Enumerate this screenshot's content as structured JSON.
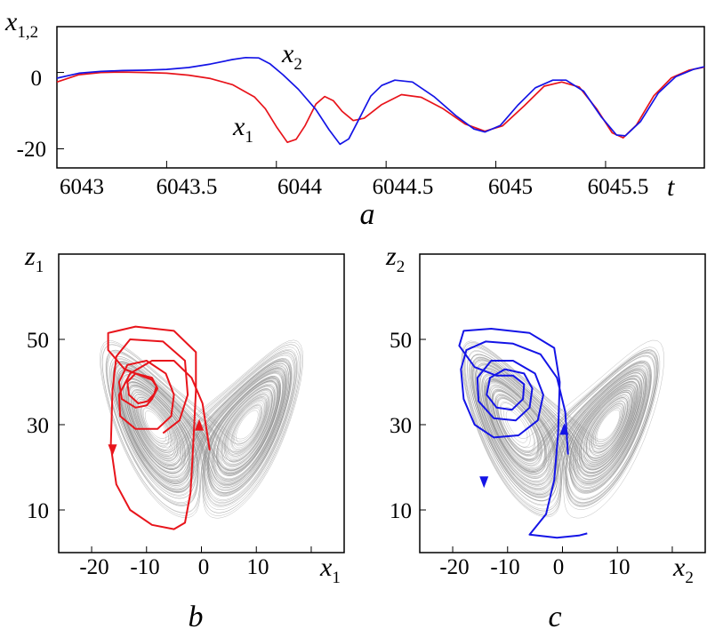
{
  "chart_data": [
    {
      "panel": "a",
      "type": "line",
      "panel_label": "a",
      "ylabel": "x",
      "ylabel_sub": "1,2",
      "xlabel": "t",
      "xlim": [
        6043,
        6045.95
      ],
      "ylim": [
        -25,
        12
      ],
      "x_ticks": [
        "6043",
        "6043.5",
        "6044",
        "6044.5",
        "6045",
        "6045.5"
      ],
      "y_ticks": [
        "0",
        "-20"
      ],
      "series": [
        {
          "name": "x",
          "name_sub": "1",
          "color": "#e8141b",
          "points": [
            [
              6043.0,
              -2.5
            ],
            [
              6043.1,
              -0.6
            ],
            [
              6043.2,
              0.0
            ],
            [
              6043.3,
              0.1
            ],
            [
              6043.4,
              0.0
            ],
            [
              6043.5,
              -0.2
            ],
            [
              6043.6,
              -0.7
            ],
            [
              6043.7,
              -1.6
            ],
            [
              6043.8,
              -3.2
            ],
            [
              6043.9,
              -6.4
            ],
            [
              6043.95,
              -9.5
            ],
            [
              6044.0,
              -14.2
            ],
            [
              6044.05,
              -18.3
            ],
            [
              6044.09,
              -17.5
            ],
            [
              6044.13,
              -14.0
            ],
            [
              6044.18,
              -8.3
            ],
            [
              6044.22,
              -6.3
            ],
            [
              6044.26,
              -7.4
            ],
            [
              6044.3,
              -10.2
            ],
            [
              6044.35,
              -12.6
            ],
            [
              6044.4,
              -12.0
            ],
            [
              6044.48,
              -8.4
            ],
            [
              6044.57,
              -5.8
            ],
            [
              6044.66,
              -6.5
            ],
            [
              6044.76,
              -9.5
            ],
            [
              6044.86,
              -13.5
            ],
            [
              6044.95,
              -15.4
            ],
            [
              6045.03,
              -14.0
            ],
            [
              6045.13,
              -8.7
            ],
            [
              6045.22,
              -3.6
            ],
            [
              6045.3,
              -2.5
            ],
            [
              6045.38,
              -3.8
            ],
            [
              6045.46,
              -9.6
            ],
            [
              6045.53,
              -15.8
            ],
            [
              6045.58,
              -17.1
            ],
            [
              6045.64,
              -13.8
            ],
            [
              6045.72,
              -6.1
            ],
            [
              6045.8,
              -1.4
            ],
            [
              6045.88,
              0.6
            ],
            [
              6045.95,
              1.4
            ]
          ]
        },
        {
          "name": "x",
          "name_sub": "2",
          "color": "#1414e6",
          "points": [
            [
              6043.0,
              -1.5
            ],
            [
              6043.1,
              -0.2
            ],
            [
              6043.2,
              0.3
            ],
            [
              6043.3,
              0.5
            ],
            [
              6043.4,
              0.6
            ],
            [
              6043.5,
              0.8
            ],
            [
              6043.6,
              1.3
            ],
            [
              6043.7,
              2.2
            ],
            [
              6043.8,
              3.4
            ],
            [
              6043.86,
              3.9
            ],
            [
              6043.92,
              3.8
            ],
            [
              6043.97,
              2.3
            ],
            [
              6044.03,
              -0.6
            ],
            [
              6044.1,
              -4.4
            ],
            [
              6044.18,
              -9.7
            ],
            [
              6044.24,
              -15.0
            ],
            [
              6044.29,
              -18.8
            ],
            [
              6044.33,
              -17.4
            ],
            [
              6044.38,
              -11.8
            ],
            [
              6044.43,
              -6.2
            ],
            [
              6044.48,
              -3.4
            ],
            [
              6044.54,
              -2.0
            ],
            [
              6044.62,
              -2.5
            ],
            [
              6044.72,
              -6.4
            ],
            [
              6044.82,
              -11.4
            ],
            [
              6044.9,
              -14.8
            ],
            [
              6044.95,
              -15.6
            ],
            [
              6045.02,
              -13.9
            ],
            [
              6045.1,
              -8.6
            ],
            [
              6045.18,
              -4.0
            ],
            [
              6045.26,
              -2.0
            ],
            [
              6045.32,
              -2.0
            ],
            [
              6045.4,
              -4.9
            ],
            [
              6045.48,
              -11.6
            ],
            [
              6045.55,
              -16.4
            ],
            [
              6045.59,
              -16.6
            ],
            [
              6045.66,
              -12.8
            ],
            [
              6045.74,
              -5.4
            ],
            [
              6045.82,
              -1.1
            ],
            [
              6045.9,
              0.8
            ],
            [
              6045.95,
              1.5
            ]
          ]
        }
      ]
    },
    {
      "panel": "b",
      "type": "line",
      "panel_label": "b",
      "xlabel": "x",
      "xlabel_sub": "1",
      "ylabel": "z",
      "ylabel_sub": "1",
      "xlim": [
        -26,
        26
      ],
      "ylim": [
        0,
        70
      ],
      "x_ticks": [
        "-20",
        "-10",
        "0",
        "10"
      ],
      "y_ticks": [
        "50",
        "30",
        "10"
      ],
      "background": "Lorenz attractor (gray)",
      "trajectory_color": "#e8141b",
      "trajectory": [
        [
          1.5,
          24
        ],
        [
          0.2,
          35
        ],
        [
          -1.8,
          41
        ],
        [
          -5,
          45
        ],
        [
          -9,
          45
        ],
        [
          -13,
          42
        ],
        [
          -15,
          37
        ],
        [
          -14.8,
          32
        ],
        [
          -12,
          29
        ],
        [
          -8,
          29
        ],
        [
          -5.5,
          32
        ],
        [
          -5,
          37
        ],
        [
          -6.5,
          42
        ],
        [
          -10,
          45
        ],
        [
          -13.5,
          44
        ],
        [
          -15,
          40
        ],
        [
          -14.5,
          36
        ],
        [
          -12,
          34
        ],
        [
          -10,
          34.5
        ],
        [
          -9,
          36
        ],
        [
          -8,
          38.5
        ],
        [
          -9,
          41
        ],
        [
          -12,
          42
        ],
        [
          -13.5,
          40
        ],
        [
          -13.2,
          37
        ],
        [
          -11.5,
          35
        ],
        [
          -9.8,
          35.5
        ],
        [
          -8.6,
          37.2
        ],
        [
          -8.2,
          39
        ],
        [
          -9,
          40.5
        ],
        [
          -11,
          41.5
        ],
        [
          -14,
          43
        ],
        [
          -17,
          47.5
        ],
        [
          -17,
          51.5
        ],
        [
          -12,
          53
        ],
        [
          -5,
          52
        ],
        [
          -1,
          47
        ],
        [
          -1,
          38
        ],
        [
          -1.5,
          25
        ],
        [
          -2,
          14
        ],
        [
          -3,
          7
        ],
        [
          -5,
          5.5
        ],
        [
          -9,
          6.5
        ],
        [
          -13,
          10
        ],
        [
          -15.5,
          16
        ],
        [
          -16.5,
          25
        ],
        [
          -16.2,
          38
        ],
        [
          -15.5,
          46
        ],
        [
          -13,
          50
        ],
        [
          -7,
          49.5
        ],
        [
          -3,
          45
        ],
        [
          -2.5,
          37
        ],
        [
          -4,
          31
        ],
        [
          -7,
          28
        ]
      ],
      "arrows": [
        {
          "x": -16.2,
          "y": 23.5,
          "dir": "down"
        },
        {
          "x": -0.4,
          "y": 30.5,
          "dir": "up"
        }
      ]
    },
    {
      "panel": "c",
      "type": "line",
      "panel_label": "c",
      "xlabel": "x",
      "xlabel_sub": "2",
      "ylabel": "z",
      "ylabel_sub": "2",
      "xlim": [
        -26,
        26
      ],
      "ylim": [
        0,
        70
      ],
      "x_ticks": [
        "-20",
        "-10",
        "0",
        "10"
      ],
      "y_ticks": [
        "50",
        "30",
        "10"
      ],
      "background": "Lorenz attractor (gray)",
      "trajectory_color": "#1414e6",
      "trajectory": [
        [
          1,
          23
        ],
        [
          0.5,
          33
        ],
        [
          -1,
          41
        ],
        [
          -4,
          46.5
        ],
        [
          -9,
          49
        ],
        [
          -14,
          49.5
        ],
        [
          -17.5,
          47.5
        ],
        [
          -18.5,
          43
        ],
        [
          -18,
          36
        ],
        [
          -16,
          30
        ],
        [
          -12.5,
          27
        ],
        [
          -8,
          27.5
        ],
        [
          -4.5,
          31
        ],
        [
          -3.5,
          37
        ],
        [
          -5,
          42
        ],
        [
          -9,
          45
        ],
        [
          -13,
          45
        ],
        [
          -15.5,
          41
        ],
        [
          -15.3,
          35.5
        ],
        [
          -12.5,
          31.5
        ],
        [
          -8.5,
          31
        ],
        [
          -6,
          34
        ],
        [
          -5.5,
          38.5
        ],
        [
          -7,
          42
        ],
        [
          -10.5,
          43
        ],
        [
          -13.2,
          41
        ],
        [
          -13.8,
          37
        ],
        [
          -12,
          34
        ],
        [
          -9.2,
          33.5
        ],
        [
          -7.2,
          36
        ],
        [
          -7,
          39.5
        ],
        [
          -9,
          41.5
        ],
        [
          -12,
          41.5
        ],
        [
          -16,
          43.5
        ],
        [
          -18.8,
          48.5
        ],
        [
          -18,
          52
        ],
        [
          -13,
          52.5
        ],
        [
          -6,
          51.5
        ],
        [
          -1.5,
          48
        ],
        [
          -0.5,
          40
        ],
        [
          -0.8,
          28
        ],
        [
          -1.5,
          17
        ],
        [
          -3,
          9
        ],
        [
          -6,
          4.2
        ],
        [
          -1,
          3.5
        ],
        [
          3,
          4
        ],
        [
          4.5,
          4.5
        ]
      ],
      "arrows": [
        {
          "x": -14.3,
          "y": 16,
          "dir": "down"
        },
        {
          "x": 0.3,
          "y": 29.5,
          "dir": "up"
        }
      ]
    }
  ]
}
